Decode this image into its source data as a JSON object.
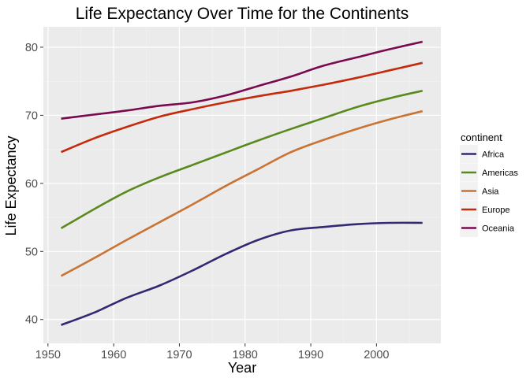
{
  "chart_data": {
    "type": "line",
    "title": "Life Expectancy Over Time for the Continents",
    "xlabel": "Year",
    "ylabel": "Life Expectancy",
    "xlim": [
      1949.3,
      2009.8
    ],
    "ylim": [
      36.5,
      83.0
    ],
    "xticks": [
      1950,
      1960,
      1970,
      1980,
      1990,
      2000
    ],
    "yticks": [
      40,
      50,
      60,
      70,
      80
    ],
    "grid": true,
    "legend": {
      "title": "continent",
      "position": "right"
    },
    "series": [
      {
        "name": "Africa",
        "color": "#312a73",
        "x": [
          1952,
          1957,
          1962,
          1967,
          1972,
          1977,
          1982,
          1987,
          1992,
          1997,
          2002,
          2007
        ],
        "y": [
          39.2,
          41.0,
          43.2,
          45.0,
          47.2,
          49.6,
          51.7,
          53.1,
          53.6,
          54.0,
          54.2,
          54.2
        ]
      },
      {
        "name": "Americas",
        "color": "#5a8a1e",
        "x": [
          1952,
          1957,
          1962,
          1967,
          1972,
          1977,
          1982,
          1987,
          1992,
          1997,
          2002,
          2007
        ],
        "y": [
          53.4,
          56.2,
          58.8,
          60.9,
          62.7,
          64.5,
          66.3,
          68.0,
          69.6,
          71.2,
          72.5,
          73.6
        ]
      },
      {
        "name": "Asia",
        "color": "#c97334",
        "x": [
          1952,
          1957,
          1962,
          1967,
          1972,
          1977,
          1982,
          1987,
          1992,
          1997,
          2002,
          2007
        ],
        "y": [
          46.4,
          49.0,
          51.7,
          54.3,
          56.9,
          59.6,
          62.1,
          64.6,
          66.4,
          68.0,
          69.4,
          70.6
        ]
      },
      {
        "name": "Europe",
        "color": "#c42b0c",
        "x": [
          1952,
          1957,
          1962,
          1967,
          1972,
          1977,
          1982,
          1987,
          1992,
          1997,
          2002,
          2007
        ],
        "y": [
          64.6,
          66.6,
          68.3,
          69.8,
          70.9,
          71.9,
          72.8,
          73.6,
          74.5,
          75.5,
          76.6,
          77.7
        ]
      },
      {
        "name": "Oceania",
        "color": "#7a0a4f",
        "x": [
          1952,
          1957,
          1962,
          1967,
          1972,
          1977,
          1982,
          1987,
          1992,
          1997,
          2002,
          2007
        ],
        "y": [
          69.5,
          70.1,
          70.7,
          71.4,
          71.9,
          72.9,
          74.3,
          75.7,
          77.3,
          78.5,
          79.7,
          80.8
        ]
      }
    ]
  }
}
